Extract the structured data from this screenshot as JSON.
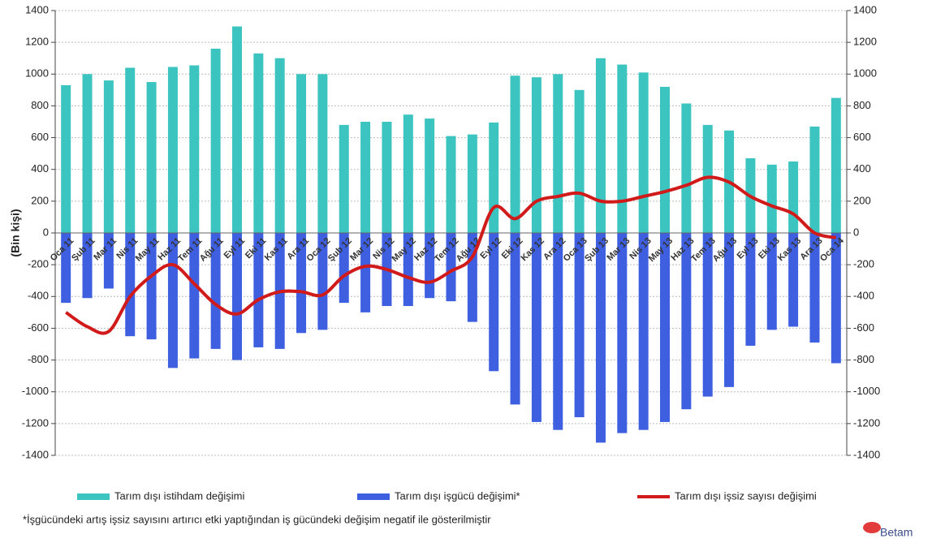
{
  "chart_data": {
    "type": "bar_line",
    "y_label": "(Bin kişi)",
    "categories": [
      "Oca 11",
      "Şub 11",
      "Mar 11",
      "Nis 11",
      "May 11",
      "Haz 11",
      "Tem 11",
      "Ağu 11",
      "Eyl 11",
      "Eki 11",
      "Kas 11",
      "Ara 11",
      "Oca 12",
      "Şub 12",
      "Mar 12",
      "Nis 12",
      "May 12",
      "Haz 12",
      "Tem 12",
      "Ağu 12",
      "Eyl 12",
      "Eki 12",
      "Kas 12",
      "Ara 12",
      "Oca 13",
      "Şub 13",
      "Mar 13",
      "Nis 13",
      "May 13",
      "Haz 13",
      "Tem 13",
      "Ağu 13",
      "Eyl 13",
      "Eki 13",
      "Kas 13",
      "Ara 13",
      "Oca 14"
    ],
    "series": [
      {
        "name": "Tarım dışı istihdam değişimi",
        "type": "bar",
        "color": "#3cc4c0",
        "values": [
          930,
          1000,
          960,
          1040,
          950,
          1045,
          1055,
          1160,
          1300,
          1130,
          1100,
          1000,
          1000,
          680,
          700,
          700,
          745,
          720,
          610,
          620,
          695,
          990,
          980,
          1000,
          900,
          1100,
          1060,
          1010,
          920,
          815,
          680,
          645,
          470,
          430,
          450,
          670,
          850
        ]
      },
      {
        "name": "Tarım dışı işgücü değişimi*",
        "type": "bar",
        "color": "#3d5fe0",
        "values": [
          -440,
          -410,
          -350,
          -650,
          -670,
          -850,
          -790,
          -730,
          -800,
          -720,
          -730,
          -630,
          -610,
          -440,
          -500,
          -460,
          -460,
          -410,
          -430,
          -560,
          -870,
          -1080,
          -1190,
          -1240,
          -1160,
          -1320,
          -1260,
          -1240,
          -1190,
          -1110,
          -1030,
          -970,
          -710,
          -610,
          -590,
          -690,
          -820
        ]
      },
      {
        "name": "Tarım dışı işsiz sayısı değişimi",
        "type": "line",
        "axis": "y2",
        "color": "#d11a1a",
        "values": [
          -500,
          -590,
          -620,
          -400,
          -270,
          -200,
          -320,
          -450,
          -510,
          -420,
          -370,
          -370,
          -390,
          -270,
          -210,
          -230,
          -280,
          -310,
          -240,
          -150,
          160,
          90,
          200,
          230,
          250,
          200,
          200,
          230,
          260,
          300,
          350,
          320,
          230,
          170,
          120,
          0,
          -30
        ]
      }
    ],
    "ylim": [
      -1400,
      1400
    ],
    "yticks": [
      -1400,
      -1200,
      -1000,
      -800,
      -600,
      -400,
      -200,
      0,
      200,
      400,
      600,
      800,
      1000,
      1200,
      1400
    ],
    "y2lim": [
      -1400,
      1400
    ],
    "y2ticks": [
      -1400,
      -1200,
      -1000,
      -800,
      -600,
      -400,
      -200,
      0,
      200,
      400,
      600,
      800,
      1000,
      1200,
      1400
    ],
    "grid": true,
    "legend": "bottom",
    "footnote": "*İşgücündeki artış işsiz sayısını artırıcı  etki yaptığından iş gücündeki değişim negatif ile gösterilmiştir",
    "logo": "Betam"
  }
}
